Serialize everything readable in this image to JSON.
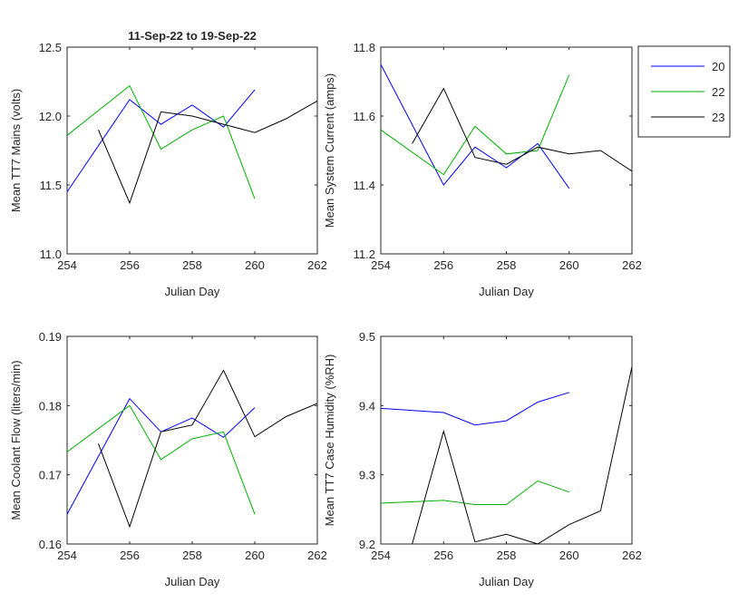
{
  "figure_title": "11-Sep-22 to 19-Sep-22",
  "legend": [
    {
      "name": "20",
      "color": "#0000ff"
    },
    {
      "name": "22",
      "color": "#00b000"
    },
    {
      "name": "23",
      "color": "#000000"
    }
  ],
  "chart_data": [
    {
      "type": "line",
      "xlabel": "Julian Day",
      "ylabel": "Mean TT7 Mains  (volts)",
      "xlim": [
        254,
        262
      ],
      "ylim": [
        11.0,
        12.5
      ],
      "xticks": [
        254,
        256,
        258,
        260,
        262
      ],
      "yticks": [
        "11.0",
        "11.5",
        "12.0",
        "12.5"
      ],
      "series": [
        {
          "name": "20",
          "x": [
            254,
            256,
            257,
            258,
            259,
            260
          ],
          "y": [
            11.45,
            12.12,
            11.94,
            12.08,
            11.92,
            12.19
          ]
        },
        {
          "name": "22",
          "x": [
            254,
            256,
            257,
            258,
            259,
            260
          ],
          "y": [
            11.86,
            12.22,
            11.76,
            11.9,
            12.0,
            11.4
          ]
        },
        {
          "name": "23",
          "x": [
            255,
            256,
            257,
            258,
            259,
            260,
            261,
            262
          ],
          "y": [
            11.9,
            11.37,
            12.03,
            12.0,
            11.94,
            11.88,
            11.98,
            12.11
          ]
        }
      ]
    },
    {
      "type": "line",
      "xlabel": "Julian Day",
      "ylabel": "Mean System Current (amps)",
      "xlim": [
        254,
        262
      ],
      "ylim": [
        11.2,
        11.8
      ],
      "xticks": [
        254,
        256,
        258,
        260,
        262
      ],
      "yticks": [
        "11.2",
        "11.4",
        "11.6",
        "11.8"
      ],
      "series": [
        {
          "name": "20",
          "x": [
            254,
            256,
            257,
            258,
            259,
            260
          ],
          "y": [
            11.75,
            11.4,
            11.51,
            11.45,
            11.52,
            11.39
          ]
        },
        {
          "name": "22",
          "x": [
            254,
            256,
            257,
            258,
            259,
            260
          ],
          "y": [
            11.56,
            11.43,
            11.57,
            11.49,
            11.5,
            11.72
          ]
        },
        {
          "name": "23",
          "x": [
            255,
            256,
            257,
            258,
            259,
            260,
            261,
            262
          ],
          "y": [
            11.52,
            11.68,
            11.48,
            11.46,
            11.51,
            11.49,
            11.5,
            11.44
          ]
        }
      ]
    },
    {
      "type": "line",
      "xlabel": "Julian Day",
      "ylabel": "Mean Coolant Flow (liters/min)",
      "xlim": [
        254,
        262
      ],
      "ylim": [
        0.16,
        0.19
      ],
      "xticks": [
        254,
        256,
        258,
        260,
        262
      ],
      "yticks": [
        "0.16",
        "0.17",
        "0.18",
        "0.19"
      ],
      "series": [
        {
          "name": "20",
          "x": [
            254,
            256,
            257,
            258,
            259,
            260
          ],
          "y": [
            0.1643,
            0.181,
            0.1762,
            0.1782,
            0.1754,
            0.1797
          ]
        },
        {
          "name": "22",
          "x": [
            254,
            256,
            257,
            258,
            259,
            260
          ],
          "y": [
            0.1733,
            0.18,
            0.1722,
            0.1752,
            0.1762,
            0.1643
          ]
        },
        {
          "name": "23",
          "x": [
            255,
            256,
            257,
            258,
            259,
            260,
            261,
            262
          ],
          "y": [
            0.1745,
            0.1625,
            0.1762,
            0.1772,
            0.1851,
            0.1755,
            0.1784,
            0.1803
          ]
        }
      ]
    },
    {
      "type": "line",
      "xlabel": "Julian Day",
      "ylabel": "Mean TT7 Case Humidity (%RH)",
      "xlim": [
        254,
        262
      ],
      "ylim": [
        9.2,
        9.5
      ],
      "xticks": [
        254,
        256,
        258,
        260,
        262
      ],
      "yticks": [
        "9.2",
        "9.3",
        "9.4",
        "9.5"
      ],
      "series": [
        {
          "name": "20",
          "x": [
            254,
            256,
            257,
            258,
            259,
            260
          ],
          "y": [
            9.396,
            9.39,
            9.372,
            9.378,
            9.405,
            9.419
          ]
        },
        {
          "name": "22",
          "x": [
            254,
            256,
            257,
            258,
            259,
            260
          ],
          "y": [
            9.259,
            9.263,
            9.257,
            9.257,
            9.291,
            9.275
          ]
        },
        {
          "name": "23",
          "x": [
            255,
            256,
            257,
            258,
            259,
            260,
            261,
            262
          ],
          "y": [
            9.2,
            9.363,
            9.203,
            9.214,
            9.2,
            9.228,
            9.248,
            9.456
          ]
        }
      ]
    }
  ]
}
